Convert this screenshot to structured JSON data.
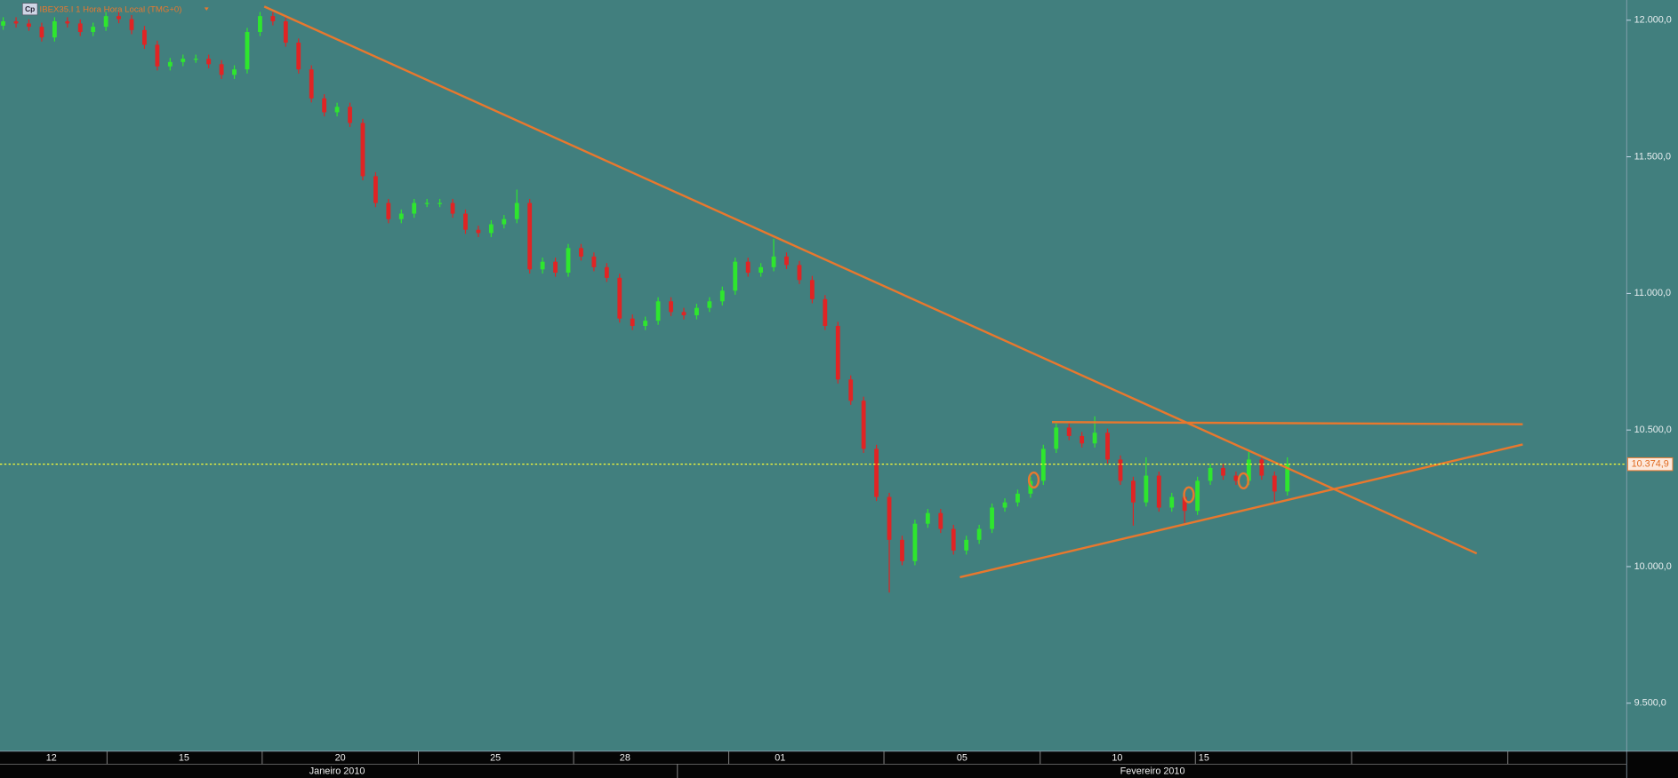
{
  "chart_data": {
    "type": "candlestick",
    "title": "IBEX35.I 1 Hora Hora Local (TMG+0)",
    "icon_label": "Cp",
    "x": [
      0,
      1,
      2,
      3,
      4,
      5,
      6,
      7,
      8,
      9,
      10,
      11,
      12,
      13,
      14,
      15,
      16,
      17,
      18,
      19,
      20,
      21,
      22,
      23,
      24,
      25,
      26,
      27,
      28,
      29,
      30,
      31,
      32,
      33,
      34,
      35,
      36,
      37,
      38,
      39,
      40,
      41,
      42,
      43,
      44,
      45,
      46,
      47,
      48,
      49,
      50,
      51,
      52,
      53,
      54,
      55,
      56,
      57,
      58,
      59,
      60,
      61,
      62,
      63,
      64,
      65,
      66,
      67,
      68,
      69,
      70,
      71,
      72,
      73,
      74,
      75,
      76,
      77,
      78,
      79,
      80,
      81,
      82,
      83,
      84,
      85,
      86,
      87,
      88,
      89,
      90,
      91,
      92,
      93,
      94,
      95,
      96,
      97,
      98,
      99,
      100
    ],
    "open": [
      11980,
      11996,
      11988,
      11976,
      11937,
      11996,
      11988,
      11957,
      11976,
      12015,
      12004,
      11964,
      11910,
      11831,
      11847,
      11859,
      11859,
      11839,
      11800,
      11820,
      11957,
      12015,
      11996,
      11918,
      11820,
      11714,
      11663,
      11683,
      11624,
      11429,
      11331,
      11272,
      11292,
      11331,
      11331,
      11331,
      11292,
      11233,
      11221,
      11253,
      11272,
      11331,
      11088,
      11116,
      11076,
      11166,
      11135,
      11096,
      11057,
      10908,
      10881,
      10900,
      10971,
      10932,
      10920,
      10947,
      10971,
      11010,
      11116,
      11076,
      11096,
      11135,
      11104,
      11049,
      10979,
      10881,
      10685,
      10607,
      10431,
      10255,
      10098,
      10020,
      10157,
      10196,
      10138,
      10059,
      10098,
      10138,
      10216,
      10235,
      10267,
      10314,
      10431,
      10509,
      10478,
      10451,
      10490,
      10392,
      10314,
      10235,
      10333,
      10216,
      10255,
      10204,
      10314,
      10361,
      10333,
      10314,
      10392,
      10333,
      10275
    ],
    "high": [
      12011,
      12011,
      12003,
      11991,
      12011,
      12011,
      12003,
      11991,
      12030,
      12030,
      12019,
      11979,
      11925,
      11862,
      11874,
      11874,
      11874,
      11854,
      11835,
      11972,
      12030,
      12030,
      12011,
      11933,
      11835,
      11729,
      11698,
      11698,
      11639,
      11444,
      11346,
      11307,
      11346,
      11346,
      11346,
      11346,
      11307,
      11248,
      11268,
      11287,
      11380,
      11346,
      11131,
      11131,
      11181,
      11181,
      11150,
      11111,
      11072,
      10923,
      10915,
      10986,
      10986,
      10947,
      10962,
      10986,
      11025,
      11131,
      11131,
      11111,
      11200,
      11150,
      11119,
      11064,
      10994,
      10896,
      10700,
      10622,
      10446,
      10270,
      10113,
      10172,
      10211,
      10211,
      10153,
      10113,
      10153,
      10231,
      10250,
      10282,
      10329,
      10446,
      10524,
      10524,
      10493,
      10550,
      10505,
      10407,
      10329,
      10400,
      10348,
      10270,
      10270,
      10329,
      10376,
      10376,
      10348,
      10420,
      10407,
      10348,
      10400
    ],
    "low": [
      11965,
      11973,
      11961,
      11922,
      11922,
      11973,
      11942,
      11942,
      11961,
      11989,
      11949,
      11895,
      11816,
      11816,
      11832,
      11844,
      11824,
      11785,
      11785,
      11805,
      11942,
      11981,
      11903,
      11805,
      11699,
      11648,
      11648,
      11609,
      11414,
      11316,
      11257,
      11257,
      11277,
      11316,
      11316,
      11277,
      11218,
      11206,
      11206,
      11238,
      11257,
      11073,
      11073,
      11061,
      11061,
      11120,
      11081,
      11042,
      10893,
      10866,
      10866,
      10885,
      10917,
      10905,
      10905,
      10932,
      10956,
      10995,
      11061,
      11061,
      11081,
      11089,
      11034,
      10964,
      10866,
      10670,
      10592,
      10416,
      10240,
      9905,
      10005,
      10005,
      10142,
      10123,
      10044,
      10044,
      10083,
      10123,
      10201,
      10220,
      10252,
      10299,
      10416,
      10463,
      10436,
      10436,
      10377,
      10299,
      10150,
      10220,
      10201,
      10201,
      10160,
      10189,
      10299,
      10318,
      10299,
      10299,
      10318,
      10230,
      10260
    ],
    "close": [
      11996,
      11988,
      11976,
      11937,
      11996,
      11988,
      11957,
      11976,
      12015,
      12004,
      11964,
      11910,
      11831,
      11847,
      11859,
      11859,
      11839,
      11800,
      11820,
      11957,
      12015,
      11996,
      11918,
      11820,
      11714,
      11663,
      11683,
      11624,
      11429,
      11331,
      11272,
      11292,
      11331,
      11331,
      11331,
      11292,
      11233,
      11221,
      11253,
      11272,
      11331,
      11088,
      11116,
      11076,
      11166,
      11135,
      11096,
      11057,
      10908,
      10881,
      10900,
      10971,
      10932,
      10920,
      10947,
      10971,
      11010,
      11116,
      11076,
      11096,
      11135,
      11104,
      11049,
      10979,
      10881,
      10685,
      10607,
      10431,
      10255,
      10098,
      10020,
      10157,
      10196,
      10138,
      10059,
      10098,
      10138,
      10216,
      10235,
      10267,
      10314,
      10431,
      10509,
      10478,
      10451,
      10490,
      10392,
      10314,
      10235,
      10333,
      10216,
      10255,
      10204,
      10314,
      10361,
      10333,
      10314,
      10392,
      10333,
      10275,
      10374.9
    ],
    "up_color": "#2ee62e",
    "down_color": "#e02424",
    "background": "#417f7e",
    "xlim": [
      -0.25,
      126.42
    ],
    "ylim": [
      9324,
      12074
    ],
    "yticks": [
      {
        "value": 12000,
        "label": "12.000,0"
      },
      {
        "value": 11500,
        "label": "11.500,0"
      },
      {
        "value": 11000,
        "label": "11.000,0"
      },
      {
        "value": 10500,
        "label": "10.500,0"
      },
      {
        "value": 10000,
        "label": "10.000,0"
      },
      {
        "value": 9500,
        "label": "9.500,0"
      }
    ],
    "xticks": [
      {
        "value": 3.75,
        "label": "12"
      },
      {
        "value": 14.08,
        "label": "15"
      },
      {
        "value": 26.25,
        "label": "20"
      },
      {
        "value": 38.33,
        "label": "25"
      },
      {
        "value": 48.42,
        "label": "28"
      },
      {
        "value": 60.5,
        "label": "01"
      },
      {
        "value": 74.67,
        "label": "05"
      },
      {
        "value": 86.75,
        "label": "10"
      },
      {
        "value": 93.5,
        "label": "15"
      }
    ],
    "month_labels": [
      {
        "value": 26,
        "label": "Janeiro 2010"
      },
      {
        "value": 89.5,
        "label": "Fevereiro 2010"
      }
    ],
    "price_line": {
      "value": 10374.9,
      "label": "10.374,9",
      "color": "#ffff33"
    },
    "trend_color": "#e8782e",
    "trend_lines": [
      {
        "x": [
          20.33,
          114.75
        ],
        "y": [
          12050,
          10048
        ]
      },
      {
        "x": [
          81.67,
          118.33
        ],
        "y": [
          10529,
          10521
        ]
      },
      {
        "x": [
          74.5,
          118.33
        ],
        "y": [
          9961,
          10447
        ]
      }
    ],
    "markers": [
      {
        "x": 80.25,
        "y": 10317
      },
      {
        "x": 92.33,
        "y": 10263
      },
      {
        "x": 96.58,
        "y": 10314
      }
    ]
  }
}
